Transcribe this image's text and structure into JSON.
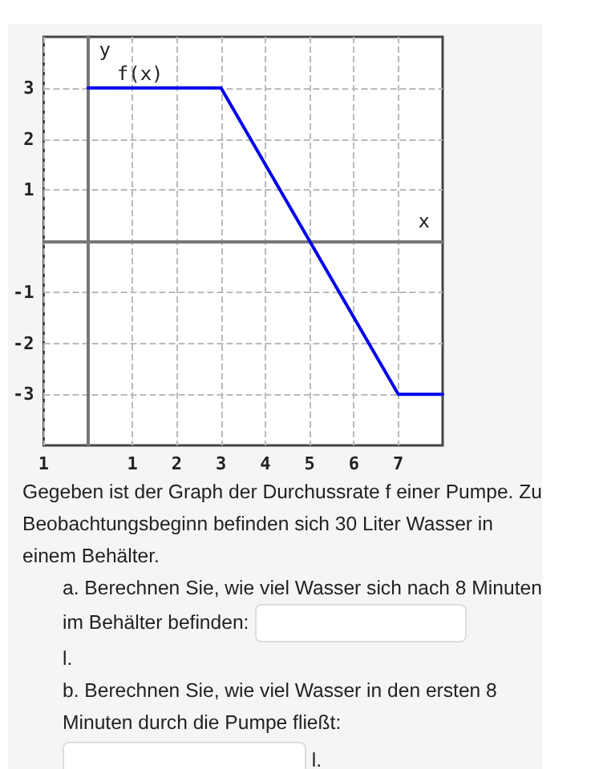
{
  "chart_data": {
    "type": "line",
    "xlabel": "x",
    "ylabel": "y",
    "x": [
      0,
      3,
      5,
      7,
      8
    ],
    "series": [
      {
        "name": "f(x)",
        "color": "#0000ee",
        "values": [
          3,
          3,
          0,
          -3,
          -3
        ]
      }
    ],
    "xlim": [
      -1,
      8
    ],
    "xticks": [
      {
        "value": -1,
        "label": "1"
      },
      1,
      2,
      3,
      4,
      5,
      6,
      7
    ],
    "ylim": [
      -4,
      4
    ],
    "yticks": [
      -3,
      -2,
      -1,
      1,
      2,
      3
    ],
    "grid": true,
    "legend": false,
    "marker": "none",
    "line_style": "solid",
    "annotations": [
      "Gegeben ist der Graph der Durchussrate f einer Pumpe. Zu Beobachtungsbeginn befinden sich 30 Liter Wasser in einem Behälter.",
      "a. Berechnen Sie, wie viel Wasser sich nach 8 Minuten im Behälter befinden:",
      "l.",
      "b. Berechnen Sie, wie viel Wasser in den ersten 8 Minuten durch die Pumpe fließt:",
      "l."
    ]
  }
}
